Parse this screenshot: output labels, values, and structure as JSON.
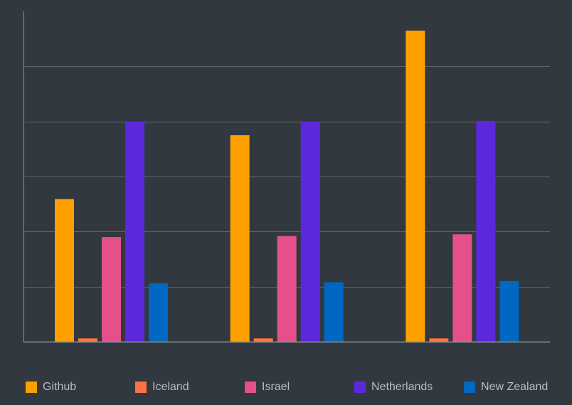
{
  "chart_data": {
    "type": "bar",
    "categories": [
      "",
      "",
      ""
    ],
    "series": [
      {
        "name": "Github",
        "color": "#ff9f00",
        "values": [
          25900,
          37500,
          56500
        ]
      },
      {
        "name": "Iceland",
        "color": "#fc7144",
        "values": [
          600,
          600,
          600
        ]
      },
      {
        "name": "Israel",
        "color": "#e3508a",
        "values": [
          19000,
          19200,
          19500
        ]
      },
      {
        "name": "Netherlands",
        "color": "#5b29db",
        "values": [
          40000,
          40000,
          40100
        ]
      },
      {
        "name": "New Zealand",
        "color": "#0067c2",
        "values": [
          10600,
          10800,
          11000
        ]
      }
    ],
    "title": "",
    "xlabel": "",
    "ylabel": "",
    "ylim": [
      0,
      60000
    ],
    "gridlines": [
      10000,
      20000,
      30000,
      40000,
      50000
    ],
    "grid": true,
    "legend_position": "bottom"
  },
  "colors": {
    "background": "#31383f",
    "grid": "#5e666d",
    "axis": "#8e959b",
    "legend_text": "#b8bdc2"
  }
}
